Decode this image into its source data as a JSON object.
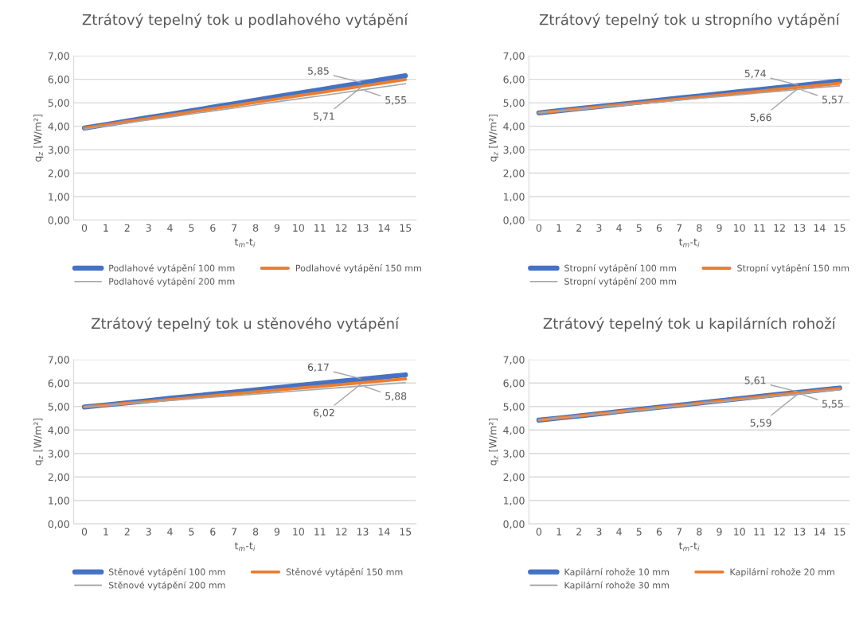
{
  "chart_data": [
    {
      "type": "line",
      "title": "Ztrátový tepelný tok u podlahového vytápění",
      "xlabel": "t$_{m}$-t$_{i}$",
      "ylabel": "q$_{z}$ [W/m²]",
      "categories": [
        "0",
        "1",
        "2",
        "3",
        "4",
        "5",
        "6",
        "7",
        "8",
        "9",
        "10",
        "11",
        "12",
        "13",
        "14",
        "15"
      ],
      "ylim": [
        0,
        7
      ],
      "yticks": [
        {
          "value": 0,
          "label": "0,00"
        },
        {
          "value": 1,
          "label": "1,00"
        },
        {
          "value": 2,
          "label": "2,00"
        },
        {
          "value": 3,
          "label": "3,00"
        },
        {
          "value": 4,
          "label": "4,00"
        },
        {
          "value": 5,
          "label": "5,00"
        },
        {
          "value": 6,
          "label": "6,00"
        },
        {
          "value": 7,
          "label": "7,00"
        }
      ],
      "grid": "y",
      "legend": "bottom",
      "series": [
        {
          "name": "Podlahové vytápění 100 mm",
          "color": "#4472c4",
          "values": [
            3.92,
            4.07,
            4.22,
            4.37,
            4.51,
            4.66,
            4.81,
            4.96,
            5.11,
            5.26,
            5.41,
            5.55,
            5.7,
            5.85,
            6.0,
            6.15
          ]
        },
        {
          "name": "Podlahové vytápění 150 mm",
          "color": "#ed7d31",
          "values": [
            3.92,
            4.06,
            4.2,
            4.33,
            4.47,
            4.61,
            4.75,
            4.88,
            5.02,
            5.16,
            5.3,
            5.43,
            5.57,
            5.71,
            5.85,
            5.99
          ]
        },
        {
          "name": "Podlahové vytápění 200 mm",
          "color": "#a5a5a5",
          "values": [
            3.88,
            4.01,
            4.14,
            4.27,
            4.39,
            4.52,
            4.65,
            4.78,
            4.91,
            5.04,
            5.17,
            5.29,
            5.42,
            5.55,
            5.68,
            5.81
          ]
        }
      ],
      "annotations": [
        {
          "text": "5,85",
          "x": "13",
          "y": 5.85
        },
        {
          "text": "5,55",
          "x": "13",
          "y": 5.55
        },
        {
          "text": "5,71",
          "x": "13",
          "y": 5.71
        }
      ]
    },
    {
      "type": "line",
      "title": "Ztrátový tepelný tok u stropního vytápění",
      "xlabel": "t$_{m}$-t$_{i}$",
      "ylabel": "q$_{z}$ [W/m²]",
      "categories": [
        "0",
        "1",
        "2",
        "3",
        "4",
        "5",
        "6",
        "7",
        "8",
        "9",
        "10",
        "11",
        "12",
        "13",
        "14",
        "15"
      ],
      "ylim": [
        0,
        7
      ],
      "yticks": [
        {
          "value": 0,
          "label": "0,00"
        },
        {
          "value": 1,
          "label": "1,00"
        },
        {
          "value": 2,
          "label": "2,00"
        },
        {
          "value": 3,
          "label": "3,00"
        },
        {
          "value": 4,
          "label": "4,00"
        },
        {
          "value": 5,
          "label": "5,00"
        },
        {
          "value": 6,
          "label": "6,00"
        },
        {
          "value": 7,
          "label": "7,00"
        }
      ],
      "grid": "y",
      "legend": "bottom",
      "series": [
        {
          "name": "Stropní vytápění 100 mm",
          "color": "#4472c4",
          "values": [
            4.57,
            4.66,
            4.75,
            4.84,
            4.93,
            5.02,
            5.11,
            5.2,
            5.29,
            5.38,
            5.47,
            5.56,
            5.65,
            5.74,
            5.83,
            5.92
          ]
        },
        {
          "name": "Stropní vytápění 150 mm",
          "color": "#ed7d31",
          "values": [
            4.57,
            4.65,
            4.74,
            4.82,
            4.91,
            4.99,
            5.07,
            5.16,
            5.24,
            5.32,
            5.41,
            5.49,
            5.58,
            5.66,
            5.74,
            5.83
          ]
        },
        {
          "name": "Stropní vytápění 200 mm",
          "color": "#a5a5a5",
          "values": [
            4.57,
            4.65,
            4.72,
            4.8,
            4.88,
            4.95,
            5.03,
            5.11,
            5.19,
            5.26,
            5.34,
            5.42,
            5.49,
            5.57,
            5.65,
            5.72
          ]
        }
      ],
      "annotations": [
        {
          "text": "5,74",
          "x": "13",
          "y": 5.74
        },
        {
          "text": "5,57",
          "x": "13",
          "y": 5.57
        },
        {
          "text": "5,66",
          "x": "13",
          "y": 5.66
        }
      ]
    },
    {
      "type": "line",
      "title": "Ztrátový tepelný tok u stěnového vytápění",
      "xlabel": "t$_{m}$-t$_{i}$",
      "ylabel": "q$_{z}$ [W/m²]",
      "categories": [
        "0",
        "1",
        "2",
        "3",
        "4",
        "5",
        "6",
        "7",
        "8",
        "9",
        "10",
        "11",
        "12",
        "13",
        "14",
        "15"
      ],
      "ylim": [
        0,
        7
      ],
      "yticks": [
        {
          "value": 0,
          "label": "0,00"
        },
        {
          "value": 1,
          "label": "1,00"
        },
        {
          "value": 2,
          "label": "2,00"
        },
        {
          "value": 3,
          "label": "3,00"
        },
        {
          "value": 4,
          "label": "4,00"
        },
        {
          "value": 5,
          "label": "5,00"
        },
        {
          "value": 6,
          "label": "6,00"
        },
        {
          "value": 7,
          "label": "7,00"
        }
      ],
      "grid": "y",
      "legend": "bottom",
      "series": [
        {
          "name": "Stěnové vytápění 100 mm",
          "color": "#4472c4",
          "values": [
            4.98,
            5.07,
            5.16,
            5.25,
            5.35,
            5.44,
            5.53,
            5.62,
            5.71,
            5.8,
            5.9,
            5.99,
            6.08,
            6.17,
            6.26,
            6.35
          ]
        },
        {
          "name": "Stěnové vytápění 150 mm",
          "color": "#ed7d31",
          "values": [
            4.98,
            5.06,
            5.14,
            5.22,
            5.3,
            5.38,
            5.46,
            5.54,
            5.62,
            5.7,
            5.78,
            5.86,
            5.94,
            6.02,
            6.1,
            6.18
          ]
        },
        {
          "name": "Stěnové vytápění 200 mm",
          "color": "#a5a5a5",
          "values": [
            4.98,
            5.05,
            5.12,
            5.19,
            5.26,
            5.33,
            5.4,
            5.46,
            5.53,
            5.6,
            5.67,
            5.74,
            5.81,
            5.88,
            5.95,
            6.02
          ]
        }
      ],
      "annotations": [
        {
          "text": "6,17",
          "x": "13",
          "y": 6.17
        },
        {
          "text": "5,88",
          "x": "13",
          "y": 5.88
        },
        {
          "text": "6,02",
          "x": "13",
          "y": 6.02
        }
      ]
    },
    {
      "type": "line",
      "title": "Ztrátový tepelný tok u kapilárních rohoží",
      "xlabel": "t$_{m}$-t$_{i}$",
      "ylabel": "q$_{z}$ [W/m²]",
      "categories": [
        "0",
        "1",
        "2",
        "3",
        "4",
        "5",
        "6",
        "7",
        "8",
        "9",
        "10",
        "11",
        "12",
        "13",
        "14",
        "15"
      ],
      "ylim": [
        0,
        7
      ],
      "yticks": [
        {
          "value": 0,
          "label": "0,00"
        },
        {
          "value": 1,
          "label": "1,00"
        },
        {
          "value": 2,
          "label": "2,00"
        },
        {
          "value": 3,
          "label": "3,00"
        },
        {
          "value": 4,
          "label": "4,00"
        },
        {
          "value": 5,
          "label": "5,00"
        },
        {
          "value": 6,
          "label": "6,00"
        },
        {
          "value": 7,
          "label": "7,00"
        }
      ],
      "grid": "y",
      "legend": "bottom",
      "series": [
        {
          "name": "Kapilární rohože 10 mm",
          "color": "#4472c4",
          "values": [
            4.42,
            4.51,
            4.6,
            4.69,
            4.79,
            4.88,
            4.97,
            5.06,
            5.15,
            5.24,
            5.34,
            5.43,
            5.52,
            5.61,
            5.7,
            5.79
          ]
        },
        {
          "name": "Kapilární rohože 20 mm",
          "color": "#ed7d31",
          "values": [
            4.42,
            4.51,
            4.6,
            4.69,
            4.78,
            4.87,
            4.96,
            5.05,
            5.14,
            5.23,
            5.32,
            5.41,
            5.5,
            5.59,
            5.68,
            5.77
          ]
        },
        {
          "name": "Kapilární rohože 30 mm",
          "color": "#a5a5a5",
          "values": [
            4.42,
            4.51,
            4.59,
            4.68,
            4.77,
            4.85,
            4.94,
            5.03,
            5.12,
            5.2,
            5.29,
            5.38,
            5.46,
            5.55,
            5.64,
            5.72
          ]
        }
      ],
      "annotations": [
        {
          "text": "5,61",
          "x": "13",
          "y": 5.61
        },
        {
          "text": "5,55",
          "x": "13",
          "y": 5.55
        },
        {
          "text": "5,59",
          "x": "13",
          "y": 5.59
        }
      ]
    }
  ]
}
